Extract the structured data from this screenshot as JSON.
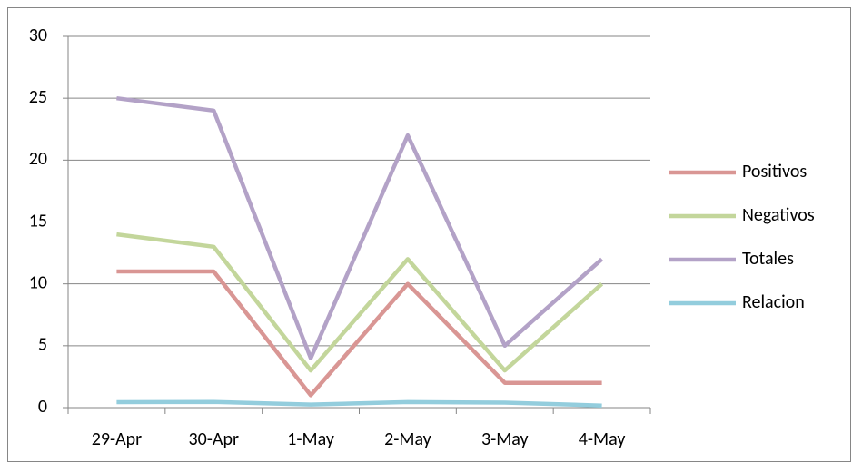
{
  "chart_data": {
    "type": "line",
    "categories": [
      "29-Apr",
      "30-Apr",
      "1-May",
      "2-May",
      "3-May",
      "4-May"
    ],
    "series": [
      {
        "name": "Positivos",
        "color": "#d99694",
        "values": [
          11,
          11,
          1,
          10,
          2,
          2
        ]
      },
      {
        "name": "Negativos",
        "color": "#c3d69b",
        "values": [
          14,
          13,
          3,
          12,
          3,
          10
        ]
      },
      {
        "name": "Totales",
        "color": "#b3a2c7",
        "values": [
          25,
          24,
          4,
          22,
          5,
          12
        ]
      },
      {
        "name": "Relacion",
        "color": "#93cddd",
        "values": [
          0.44,
          0.46,
          0.25,
          0.45,
          0.4,
          0.17
        ]
      }
    ],
    "ylim": [
      0,
      30
    ],
    "yticks": [
      0,
      5,
      10,
      15,
      20,
      25,
      30
    ],
    "grid": true,
    "legend": "right"
  }
}
